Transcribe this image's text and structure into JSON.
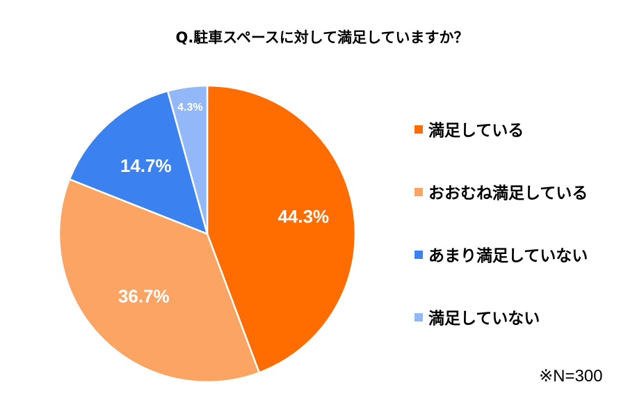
{
  "chart_data": {
    "type": "pie",
    "title": "Q.駐車スペースに対して満足していますか？",
    "note": "※N=300",
    "slices": [
      {
        "label": "満足している",
        "value": 44.3,
        "value_label": "44.3%",
        "color": "#ff6d00"
      },
      {
        "label": "おおむね満足している",
        "value": 36.7,
        "value_label": "36.7%",
        "color": "#fba464"
      },
      {
        "label": "あまり満足していない",
        "value": 14.7,
        "value_label": "14.7%",
        "color": "#3b82f0"
      },
      {
        "label": "満足していない",
        "value": 4.3,
        "value_label": "4.3%",
        "color": "#93b8fa"
      }
    ],
    "start_angle_deg": 0,
    "direction": "clockwise",
    "legend_position": "right"
  }
}
